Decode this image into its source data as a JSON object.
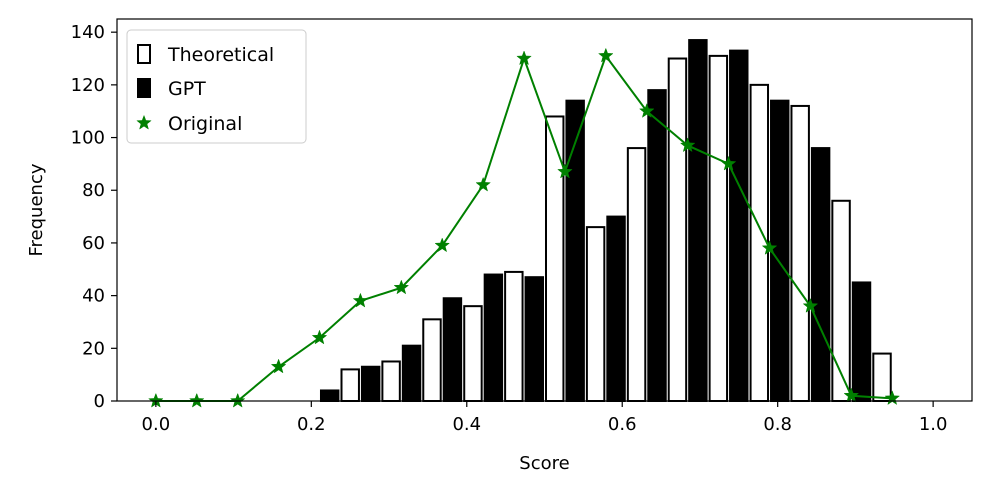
{
  "chart_data": {
    "type": "bar",
    "xlabel": "Score",
    "ylabel": "Frequency",
    "xlim": [
      -0.05,
      1.05
    ],
    "ylim": [
      0,
      145
    ],
    "xticks": [
      0.0,
      0.2,
      0.4,
      0.6,
      0.8,
      1.0
    ],
    "xtick_labels": [
      "0.0",
      "0.2",
      "0.4",
      "0.6",
      "0.8",
      "1.0"
    ],
    "yticks": [
      0,
      20,
      40,
      60,
      80,
      100,
      120,
      140
    ],
    "ytick_labels": [
      "0",
      "20",
      "40",
      "60",
      "80",
      "100",
      "120",
      "140"
    ],
    "bin_width": 0.0526,
    "bin_centers": [
      0.0,
      0.0526,
      0.1053,
      0.1579,
      0.2105,
      0.2632,
      0.3158,
      0.3684,
      0.4211,
      0.4737,
      0.5263,
      0.5789,
      0.6316,
      0.6842,
      0.7368,
      0.7895,
      0.8421,
      0.8947,
      0.9474
    ],
    "legend_position": "top-left",
    "series": [
      {
        "name": "Theoretical",
        "kind": "bar",
        "style": "hollow",
        "color": "#000000",
        "values": [
          0,
          0,
          0,
          0,
          0,
          12,
          15,
          31,
          36,
          49,
          108,
          66,
          96,
          130,
          131,
          120,
          112,
          76,
          18
        ]
      },
      {
        "name": "GPT",
        "kind": "bar",
        "style": "filled",
        "color": "#000000",
        "values": [
          0,
          0,
          0,
          0,
          4,
          13,
          21,
          39,
          48,
          47,
          114,
          70,
          118,
          137,
          133,
          114,
          96,
          45,
          0
        ]
      },
      {
        "name": "Original",
        "kind": "line",
        "marker": "star",
        "color": "#008000",
        "values": [
          0,
          0,
          0,
          13,
          24,
          38,
          43,
          59,
          82,
          130,
          87,
          131,
          110,
          97,
          90,
          58,
          36,
          2,
          1
        ]
      }
    ]
  }
}
